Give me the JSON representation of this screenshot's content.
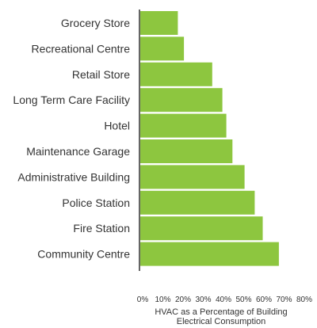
{
  "chart_data": {
    "type": "bar",
    "orientation": "horizontal",
    "title": "",
    "categories": [
      "Grocery Store",
      "Recreational Centre",
      "Retail Store",
      "Long Term Care Facility",
      "Hotel",
      "Maintenance Garage",
      "Administrative Building",
      "Police Station",
      "Fire Station",
      "Community Centre"
    ],
    "values": [
      19,
      22,
      36,
      41,
      43,
      46,
      52,
      57,
      61,
      69
    ],
    "xlabel_lines": [
      "HVAC as a Percentage of Building",
      "Electrical Consumption"
    ],
    "ylabel": "",
    "xlim": [
      0,
      80
    ],
    "xticks": [
      "0%",
      "10%",
      "20%",
      "30%",
      "40%",
      "50%",
      "60%",
      "70%",
      "80%"
    ],
    "grid": false,
    "bar_color": "#8dc63f",
    "axis_color": "#333333"
  }
}
